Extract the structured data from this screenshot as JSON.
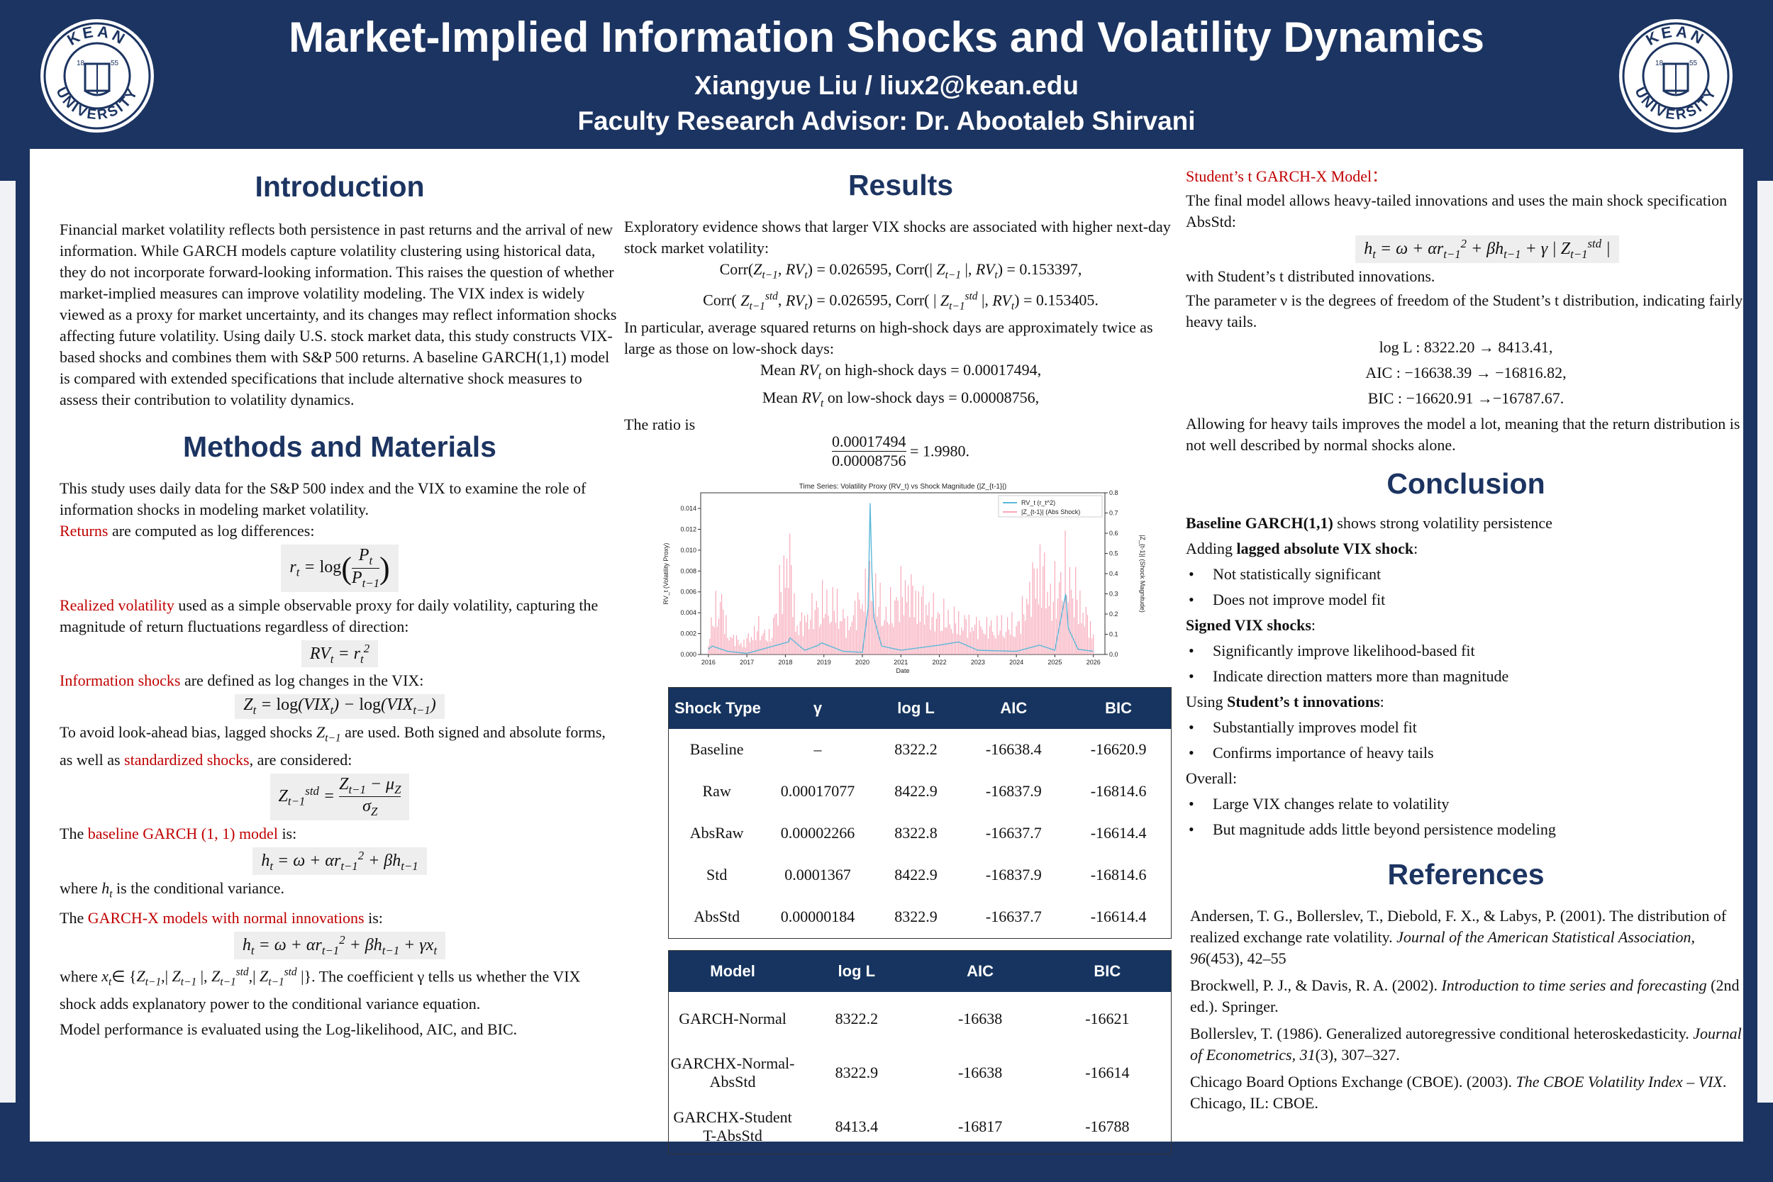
{
  "header": {
    "title": "Market-Implied Information Shocks and Volatility Dynamics",
    "author": "Xiangyue Liu /  liux2@kean.edu",
    "advisor": "Faculty Research Advisor: Dr. Abootaleb Shirvani",
    "logo_top": "KEAN",
    "logo_bottom": "UNIVERSITY",
    "logo_year_l": "18",
    "logo_year_r": "55"
  },
  "introduction": {
    "title": "Introduction",
    "text": "Financial market volatility reflects both persistence in past returns and the arrival of new information. While GARCH models capture volatility clustering using historical data, they do not incorporate forward-looking information. This raises the question of whether market-implied measures can improve volatility modeling. The VIX index is widely viewed as a proxy for market uncertainty, and its changes may reflect information shocks affecting future volatility. Using daily U.S. stock market data, this study constructs VIX-based shocks and combines them with S&P 500 returns. A baseline GARCH(1,1) model is compared with extended specifications that include alternative shock measures to assess their contribution to volatility dynamics."
  },
  "methods": {
    "title": "Methods and Materials",
    "p1": "This study uses daily data for the S&P 500 index and the VIX to examine the role of information shocks in modeling market volatility.",
    "returns_red": "Returns",
    "returns_rest": " are computed as log differences:",
    "rv_red": "Realized volatility",
    "rv_rest": " used as a simple observable proxy for daily volatility, capturing the magnitude of return fluctuations regardless of direction:",
    "shock_red": "Information shocks",
    "shock_rest": " are defined as log changes in the VIX:",
    "lag_a": "To avoid look-ahead bias, lagged shocks ",
    "lag_b": " are used. Both signed and absolute forms, as well as ",
    "lag_red": "standardized shocks",
    "lag_c": ", are considered:",
    "base_a": "The ",
    "base_red": "baseline GARCH (1, 1) model",
    "base_b": " is:",
    "where_a": "where ",
    "where_b": " is the conditional variance.",
    "gx_a": "The ",
    "gx_red": "GARCH-X models with normal innovations",
    "gx_b": " is:",
    "x_text": "The coefficient γ tells us whether the VIX shock adds explanatory power to the conditional variance equation.",
    "perf": "Model performance is evaluated using the Log-likelihood, AIC, and BIC."
  },
  "results": {
    "title": "Results",
    "p1": "Exploratory evidence shows that larger VIX shocks are associated with higher next-day stock market volatility:",
    "corr1a": "= 0.026595, Corr(|",
    "corr1b": "|,",
    "corr1c": ") = 0.153397,",
    "corr2a": ") = 0.026595, Corr( |",
    "corr2b": "|,",
    "corr2c": ") = 0.153405.",
    "p2": "In particular, average squared returns on high-shock days are approximately twice as large as those on low-shock days:",
    "mean1a": "Mean",
    "mean1b": "on high-shock days = 0.00017494,",
    "mean2a": "Mean",
    "mean2b": "on low-shock days = 0.00008756,",
    "ratio": "The ratio is",
    "num": "0.00017494",
    "den": "0.00008756",
    "ratio_val": "= 1.9980."
  },
  "chart_data": {
    "type": "line",
    "title": "Time Series: Volatility Proxy (RV_t) vs Shock Magnitude (|Z_{t-1}|)",
    "xlabel": "Date",
    "ylabel": "RV_t (Volatility Proxy)",
    "y2label": "|Z_{t-1}| (Shock Magnitude)",
    "x_ticks": [
      "2016",
      "2017",
      "2018",
      "2019",
      "2020",
      "2021",
      "2022",
      "2023",
      "2024",
      "2025",
      "2026"
    ],
    "y_ticks": [
      "0.000",
      "0.002",
      "0.004",
      "0.006",
      "0.008",
      "0.010",
      "0.012",
      "0.014"
    ],
    "y2_ticks": [
      "0.0",
      "0.1",
      "0.2",
      "0.3",
      "0.4",
      "0.5",
      "0.6",
      "0.7",
      "0.8"
    ],
    "ylim": [
      0,
      0.0155
    ],
    "y2lim": [
      0,
      0.8
    ],
    "legend_position": "top-right",
    "series": [
      {
        "name": "RV_t (r_t^2)",
        "color": "#5bb8d8",
        "axis": "left",
        "x": [
          2016.0,
          2016.1,
          2016.5,
          2017.0,
          2018.08,
          2018.12,
          2018.5,
          2018.8,
          2018.95,
          2019.5,
          2020.0,
          2020.15,
          2020.2,
          2020.25,
          2020.3,
          2020.5,
          2021.0,
          2022.0,
          2022.5,
          2023.0,
          2024.0,
          2024.6,
          2025.0,
          2025.28,
          2025.35,
          2025.6,
          2026.0
        ],
        "y": [
          0.0005,
          0.0008,
          0.0003,
          0.0001,
          0.0012,
          0.0016,
          0.0004,
          0.0008,
          0.0011,
          0.0003,
          0.0002,
          0.0045,
          0.0145,
          0.0075,
          0.0035,
          0.0008,
          0.0004,
          0.0009,
          0.0012,
          0.0004,
          0.0003,
          0.0009,
          0.0004,
          0.0058,
          0.0025,
          0.0005,
          0.0003
        ]
      },
      {
        "name": "|Z_{t-1}| (Abs Shock)",
        "color": "#f7a8b8",
        "axis": "right",
        "x": [
          2016.0,
          2016.3,
          2016.5,
          2016.9,
          2017.3,
          2017.6,
          2018.08,
          2018.3,
          2018.9,
          2019.4,
          2019.6,
          2020.2,
          2020.6,
          2021.1,
          2021.9,
          2022.4,
          2023.2,
          2024.05,
          2024.6,
          2024.9,
          2025.28,
          2025.7,
          2026.0
        ],
        "y": [
          0.12,
          0.45,
          0.15,
          0.08,
          0.2,
          0.12,
          0.78,
          0.2,
          0.38,
          0.35,
          0.2,
          0.55,
          0.28,
          0.5,
          0.3,
          0.25,
          0.2,
          0.22,
          0.68,
          0.42,
          0.62,
          0.35,
          0.15
        ]
      }
    ]
  },
  "shock_table": {
    "headers": [
      "Shock Type",
      "γ",
      "log L",
      "AIC",
      "BIC"
    ],
    "rows": [
      [
        "Baseline",
        "–",
        "8322.2",
        "-16638.4",
        "-16620.9"
      ],
      [
        "Raw",
        "0.00017077",
        "8422.9",
        "-16837.9",
        "-16814.6"
      ],
      [
        "AbsRaw",
        "0.00002266",
        "8322.8",
        "-16637.7",
        "-16614.4"
      ],
      [
        "Std",
        "0.0001367",
        "8422.9",
        "-16837.9",
        "-16814.6"
      ],
      [
        "AbsStd",
        "0.00000184",
        "8322.9",
        "-16637.7",
        "-16614.4"
      ]
    ]
  },
  "model_table": {
    "headers": [
      "Model",
      "log L",
      "AIC",
      "BIC"
    ],
    "rows": [
      [
        "GARCH-Normal",
        "8322.2",
        "-16638",
        "-16621"
      ],
      [
        "GARCHX-Normal-AbsStd",
        "8322.9",
        "-16638",
        "-16614"
      ],
      [
        "GARCHX-Student T-AbsStd",
        "8413.4",
        "-16817",
        "-16788"
      ]
    ]
  },
  "student": {
    "title": "Student’s t GARCH-X Model：",
    "p1": "The final model allows heavy-tailed innovations and uses the main shock specification AbsStd:",
    "p2": "with Student’s t distributed innovations.",
    "p3": "The parameter ν is the degrees of freedom of the Student’s t distribution, indicating fairly heavy tails.",
    "l1": "log L : 8322.20 → 8413.41,",
    "l2": "AIC : −16638.39 → −16816.82,",
    "l3": "BIC : −16620.91 →−16787.67.",
    "p4": "Allowing for heavy tails improves the model a lot, meaning that the return distribution is not well described by normal shocks alone."
  },
  "conclusion": {
    "title": "Conclusion",
    "b1_bold": "Baseline GARCH(1,1)",
    "b1_rest": " shows strong volatility persistence",
    "b2_a": "Adding ",
    "b2_bold": "lagged absolute VIX shock",
    "b2_c": ":",
    "b2_items": [
      "Not statistically significant",
      "Does not improve model fit"
    ],
    "b3_bold": "Signed VIX shocks",
    "b3_c": ":",
    "b3_items": [
      "Significantly improve likelihood-based fit",
      "Indicate direction matters more than magnitude"
    ],
    "b4_a": "Using ",
    "b4_bold": "Student’s t innovations",
    "b4_c": ":",
    "b4_items": [
      "Substantially improves model fit",
      "Confirms importance of heavy tails"
    ],
    "b5": "Overall:",
    "b5_items": [
      "Large VIX changes relate to volatility",
      "But magnitude adds little beyond persistence modeling"
    ]
  },
  "references": {
    "title": "References",
    "r1a": "Andersen, T. G., Bollerslev, T., Diebold, F. X., & Labys, P. (2001). The distribution of realized exchange rate volatility. ",
    "r1i": "Journal of the American Statistical Association, 96",
    "r1b": "(453), 42–55",
    "r2a": "Brockwell, P. J., & Davis, R. A. (2002). ",
    "r2i": "Introduction to time series and forecasting",
    "r2b": " (2nd ed.). Springer.",
    "r3a": "Bollerslev, T. (1986). Generalized autoregressive conditional heteroskedasticity. ",
    "r3i": "Journal of Econometrics, 31",
    "r3b": "(3), 307–327.",
    "r4a": "Chicago Board Options Exchange (CBOE). (2003). ",
    "r4i": "The CBOE Volatility Index – VIX",
    "r4b": ". Chicago, IL: CBOE."
  }
}
